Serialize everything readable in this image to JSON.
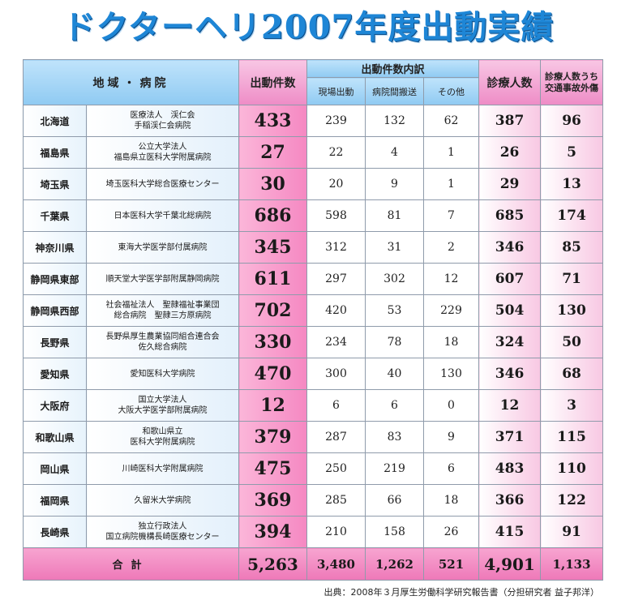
{
  "title": "ドクターヘリ2007年度出動実績",
  "headers": {
    "region_hospital": [
      "地",
      "域",
      "・",
      "病",
      "院"
    ],
    "dispatch_count": "出動件数",
    "breakdown": "出動件数内訳",
    "scene": "現場出動",
    "transfer": "病院間搬送",
    "other": "その他",
    "patients": "診療人数",
    "trauma_line1": "診療人数うち",
    "trauma_line2": "交通事故外傷"
  },
  "rows": [
    {
      "pref": "北海道",
      "hospital": [
        "医療法人　渓仁会",
        "手稲渓仁会病院"
      ],
      "dispatch": "433",
      "scene": "239",
      "transfer": "132",
      "other": "62",
      "patients": "387",
      "trauma": "96"
    },
    {
      "pref": "福島県",
      "hospital": [
        "公立大学法人",
        "福島県立医科大学附属病院"
      ],
      "dispatch": "27",
      "scene": "22",
      "transfer": "4",
      "other": "1",
      "patients": "26",
      "trauma": "5"
    },
    {
      "pref": "埼玉県",
      "hospital": [
        "埼玉医科大学総合医療センター"
      ],
      "dispatch": "30",
      "scene": "20",
      "transfer": "9",
      "other": "1",
      "patients": "29",
      "trauma": "13"
    },
    {
      "pref": "千葉県",
      "hospital": [
        "日本医科大学千葉北総病院"
      ],
      "dispatch": "686",
      "scene": "598",
      "transfer": "81",
      "other": "7",
      "patients": "685",
      "trauma": "174"
    },
    {
      "pref": "神奈川県",
      "hospital": [
        "東海大学医学部付属病院"
      ],
      "dispatch": "345",
      "scene": "312",
      "transfer": "31",
      "other": "2",
      "patients": "346",
      "trauma": "85"
    },
    {
      "pref": "静岡県東部",
      "hospital": [
        "順天堂大学医学部附属静岡病院"
      ],
      "dispatch": "611",
      "scene": "297",
      "transfer": "302",
      "other": "12",
      "patients": "607",
      "trauma": "71"
    },
    {
      "pref": "静岡県西部",
      "hospital": [
        "社会福祉法人　聖隷福祉事業団",
        "総合病院　聖隷三方原病院"
      ],
      "dispatch": "702",
      "scene": "420",
      "transfer": "53",
      "other": "229",
      "patients": "504",
      "trauma": "130"
    },
    {
      "pref": "長野県",
      "hospital": [
        "長野県厚生農業協同組合連合会",
        "佐久総合病院"
      ],
      "dispatch": "330",
      "scene": "234",
      "transfer": "78",
      "other": "18",
      "patients": "324",
      "trauma": "50"
    },
    {
      "pref": "愛知県",
      "hospital": [
        "愛知医科大学病院"
      ],
      "dispatch": "470",
      "scene": "300",
      "transfer": "40",
      "other": "130",
      "patients": "346",
      "trauma": "68"
    },
    {
      "pref": "大阪府",
      "hospital": [
        "国立大学法人",
        "大阪大学医学部附属病院"
      ],
      "dispatch": "12",
      "scene": "6",
      "transfer": "6",
      "other": "0",
      "patients": "12",
      "trauma": "3"
    },
    {
      "pref": "和歌山県",
      "hospital": [
        "和歌山県立",
        "医科大学附属病院"
      ],
      "dispatch": "379",
      "scene": "287",
      "transfer": "83",
      "other": "9",
      "patients": "371",
      "trauma": "115"
    },
    {
      "pref": "岡山県",
      "hospital": [
        "川崎医科大学附属病院"
      ],
      "dispatch": "475",
      "scene": "250",
      "transfer": "219",
      "other": "6",
      "patients": "483",
      "trauma": "110"
    },
    {
      "pref": "福岡県",
      "hospital": [
        "久留米大学病院"
      ],
      "dispatch": "369",
      "scene": "285",
      "transfer": "66",
      "other": "18",
      "patients": "366",
      "trauma": "122"
    },
    {
      "pref": "長崎県",
      "hospital": [
        "独立行政法人",
        "国立病院機構長崎医療センター"
      ],
      "dispatch": "394",
      "scene": "210",
      "transfer": "158",
      "other": "26",
      "patients": "415",
      "trauma": "91"
    }
  ],
  "total": {
    "label": "合計",
    "dispatch": "5,263",
    "scene": "3,480",
    "transfer": "1,262",
    "other": "521",
    "patients": "4,901",
    "trauma": "1,133"
  },
  "source": "出典：2008年３月厚生労働科学研究報告書（分担研究者 益子邦洋）",
  "colors": {
    "title": "#1e86d6",
    "header_blue": "#8fcaf2",
    "pink": "#f588c2"
  }
}
